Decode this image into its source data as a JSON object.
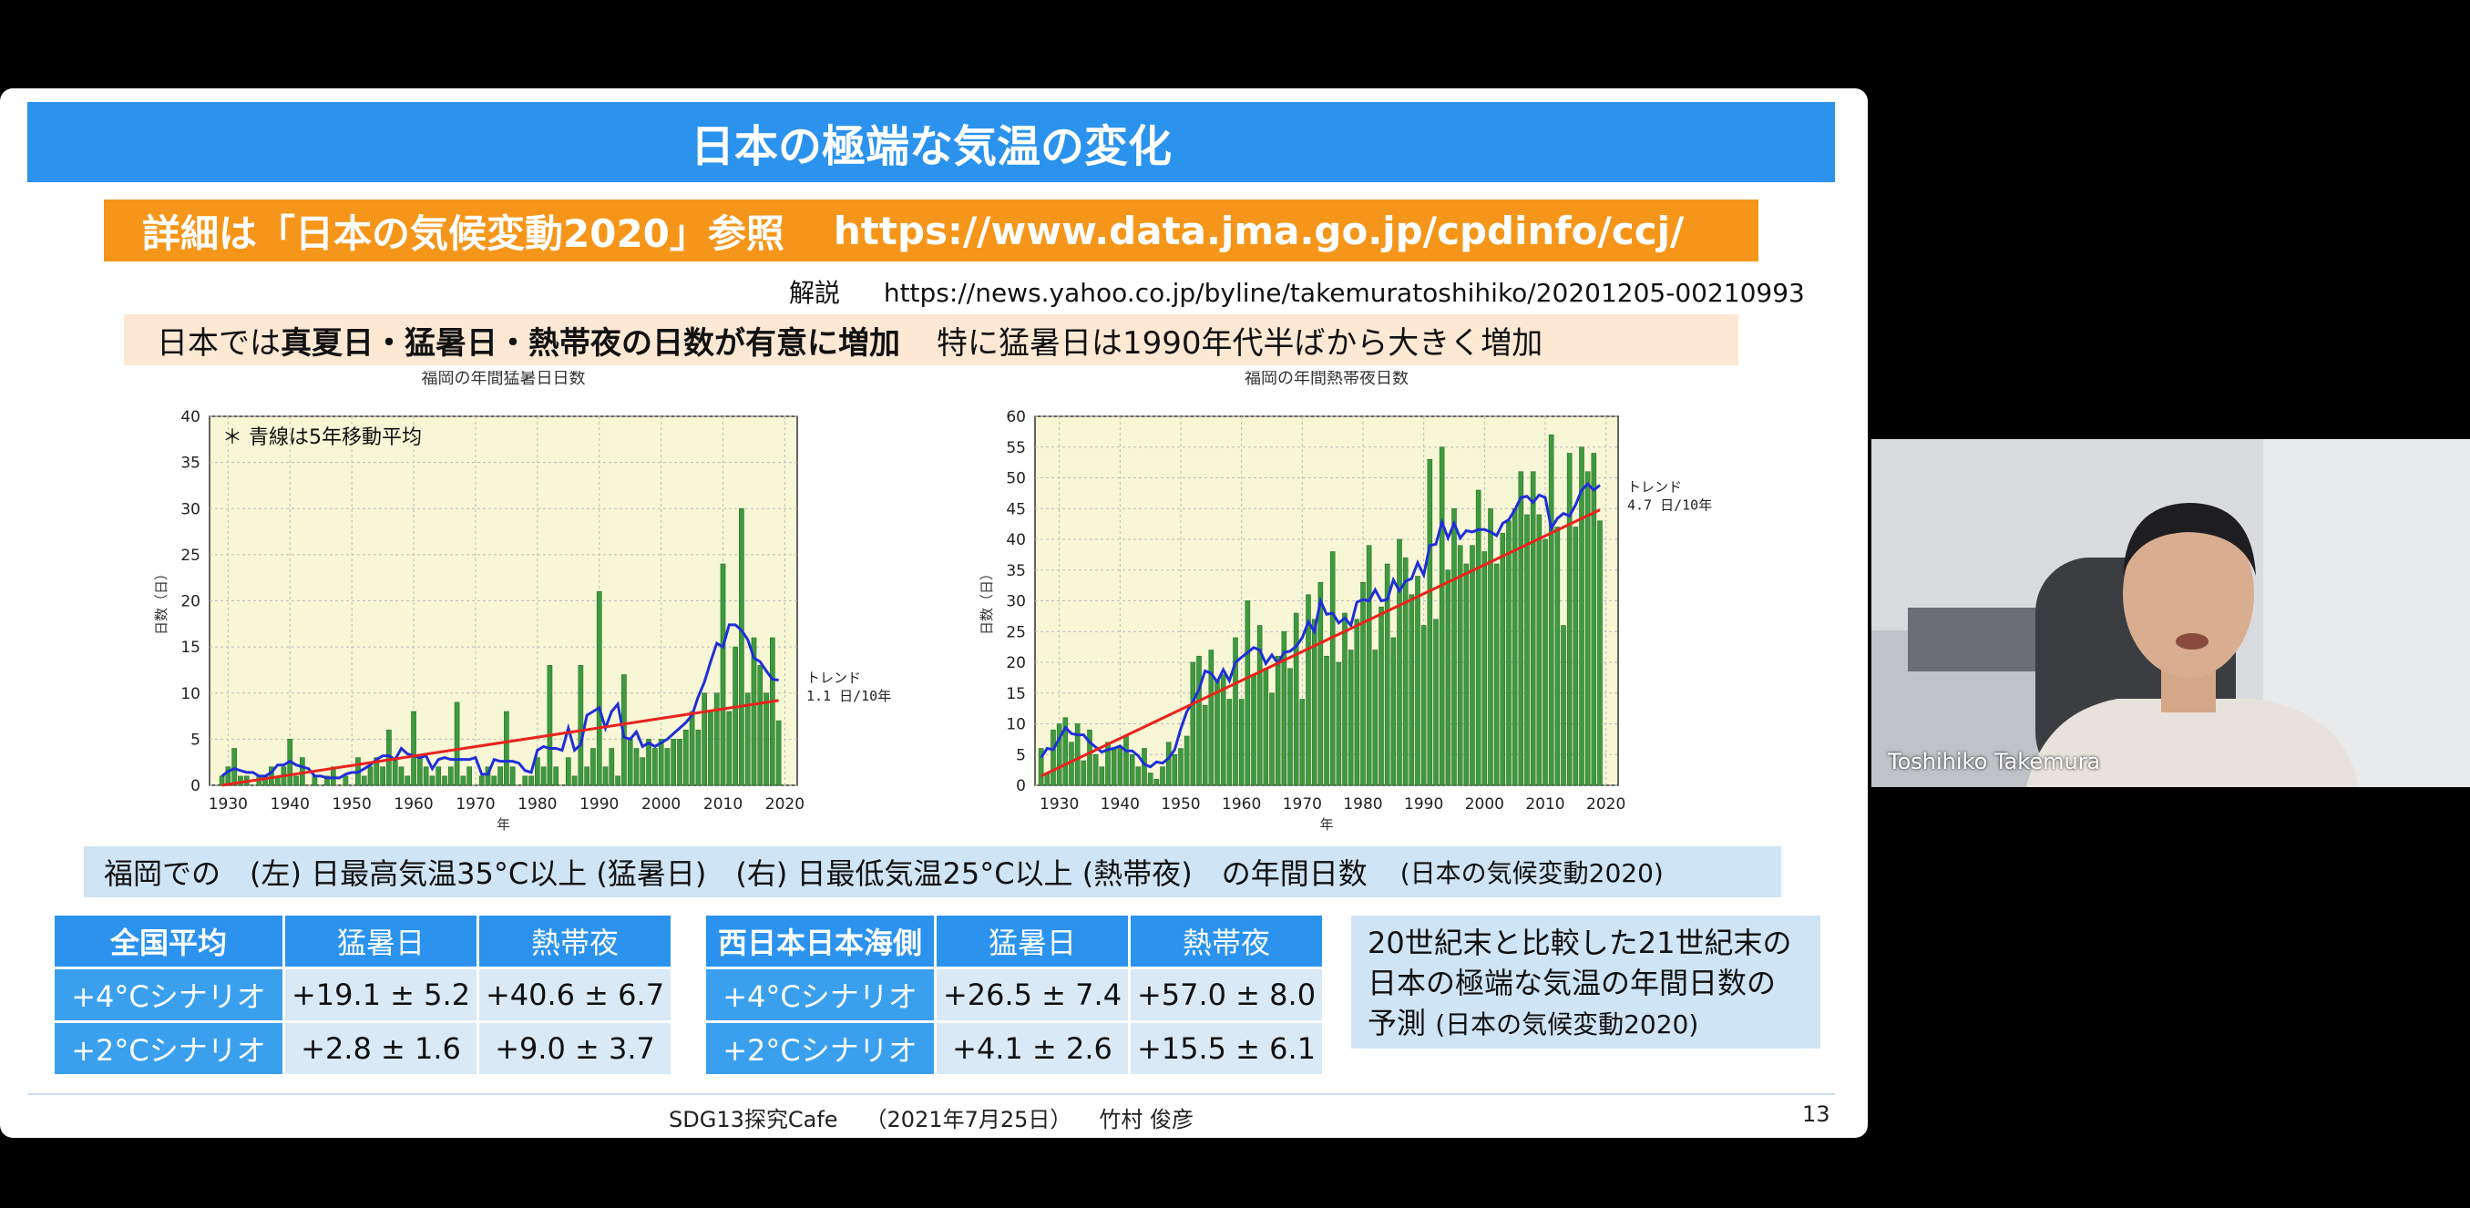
{
  "slide": {
    "title": "日本の極端な気温の変化",
    "reference": {
      "label": "詳細は「日本の気候変動2020」参照",
      "url": "https://www.data.jma.go.jp/cpdinfo/ccj/"
    },
    "commentary": {
      "label": "解説",
      "url": "https://news.yahoo.co.jp/byline/takemuratoshihiko/20201205-00210993"
    },
    "key_finding": {
      "prefix": "日本では",
      "bold": "真夏日・猛暑日・熱帯夜の日数が有意に増加",
      "suffix": "特に猛暑日は1990年代半ばから大きく増加"
    },
    "caption": {
      "text": "福岡での　(左) 日最高気温35°C以上 (猛暑日)　(右) 日最低気温25°C以上 (熱帯夜)　の年間日数",
      "source": "(日本の気候変動2020)"
    },
    "tables": [
      {
        "headers": [
          "全国平均",
          "猛暑日",
          "熱帯夜"
        ],
        "rows": [
          [
            "+4°Cシナリオ",
            "+19.1 ± 5.2",
            "+40.6 ± 6.7"
          ],
          [
            "+2°Cシナリオ",
            "+2.8 ± 1.6",
            "+9.0 ± 3.7"
          ]
        ]
      },
      {
        "headers": [
          "西日本日本海側",
          "猛暑日",
          "熱帯夜"
        ],
        "rows": [
          [
            "+4°Cシナリオ",
            "+26.5 ± 7.4",
            "+57.0 ± 8.0"
          ],
          [
            "+2°Cシナリオ",
            "+4.1 ± 2.6",
            "+15.5 ± 6.1"
          ]
        ]
      }
    ],
    "note": {
      "text": "20世紀末と比較した21世紀末の日本の極端な気温の年間日数の予測",
      "source": "(日本の気候変動2020)"
    },
    "footer": {
      "event": "SDG13探究Cafe",
      "date": "（2021年7月25日）",
      "author": "竹村 俊彦"
    },
    "page_number": "13"
  },
  "video": {
    "participant_name": "Toshihiko Takemura"
  },
  "colors": {
    "title_bar": "#2b93ee",
    "reference_bar": "#f5961a",
    "bar_green": "#3e9a3e",
    "moving_average_line": "#1f2fd6",
    "trend_line": "#e8231e",
    "plot_background": "#f7f7d6"
  },
  "chart_data": [
    {
      "type": "bar",
      "title": "福岡の年間猛暑日日数",
      "xlabel": "年",
      "ylabel": "日数（日）",
      "xlim": [
        1927,
        2022
      ],
      "ylim": [
        0,
        40
      ],
      "yticks": [
        0,
        5,
        10,
        15,
        20,
        25,
        30,
        35,
        40
      ],
      "xticks": [
        1930,
        1940,
        1950,
        1960,
        1970,
        1980,
        1990,
        2000,
        2010,
        2020
      ],
      "grid": true,
      "annotation": "＊ 青線は5年移動平均",
      "trend_label": "トレンド\n1.1 日/10年",
      "years": [
        1929,
        1930,
        1931,
        1932,
        1933,
        1934,
        1935,
        1936,
        1937,
        1938,
        1939,
        1940,
        1941,
        1942,
        1943,
        1944,
        1945,
        1946,
        1947,
        1948,
        1949,
        1950,
        1951,
        1952,
        1953,
        1954,
        1955,
        1956,
        1957,
        1958,
        1959,
        1960,
        1961,
        1962,
        1963,
        1964,
        1965,
        1966,
        1967,
        1968,
        1969,
        1970,
        1971,
        1972,
        1973,
        1974,
        1975,
        1976,
        1977,
        1978,
        1979,
        1980,
        1981,
        1982,
        1983,
        1984,
        1985,
        1986,
        1987,
        1988,
        1989,
        1990,
        1991,
        1992,
        1993,
        1994,
        1995,
        1996,
        1997,
        1998,
        1999,
        2000,
        2001,
        2002,
        2003,
        2004,
        2005,
        2006,
        2007,
        2008,
        2009,
        2010,
        2011,
        2012,
        2013,
        2014,
        2015,
        2016,
        2017,
        2018,
        2019
      ],
      "values": [
        1,
        2,
        4,
        1,
        1,
        0,
        1,
        1,
        2,
        1,
        2,
        5,
        1,
        3,
        0,
        1,
        0,
        1,
        2,
        0,
        1,
        0,
        3,
        1,
        2,
        3,
        2,
        6,
        3,
        2,
        1,
        8,
        3,
        2,
        1,
        2,
        1,
        2,
        9,
        1,
        2,
        0,
        1,
        2,
        1,
        2,
        8,
        2,
        0,
        1,
        1,
        3,
        2,
        13,
        2,
        0,
        3,
        1,
        13,
        2,
        4,
        21,
        2,
        4,
        1,
        12,
        5,
        4,
        3,
        5,
        4,
        5,
        4,
        5,
        5,
        6,
        8,
        6,
        10,
        8,
        10,
        24,
        8,
        15,
        30,
        10,
        16,
        13,
        10,
        16,
        7
      ],
      "moving_average": [
        1.0,
        1.5,
        1.8,
        1.6,
        1.4,
        1.4,
        1.0,
        1.0,
        1.4,
        2.2,
        2.2,
        2.6,
        2.2,
        2.0,
        1.8,
        1.0,
        1.0,
        0.8,
        0.8,
        0.8,
        1.2,
        1.4,
        1.4,
        1.8,
        2.2,
        2.8,
        3.2,
        3.2,
        2.8,
        4.0,
        3.4,
        3.2,
        3.0,
        3.2,
        1.8,
        2.8,
        3.0,
        2.8,
        2.8,
        2.8,
        2.8,
        3.0,
        1.2,
        1.2,
        2.8,
        2.6,
        2.6,
        2.6,
        2.4,
        1.6,
        1.4,
        3.8,
        4.2,
        4.0,
        4.0,
        3.8,
        6.2,
        3.8,
        4.4,
        7.6,
        8.0,
        8.4,
        6.2,
        8.0,
        8.8,
        5.2,
        5.0,
        5.8,
        4.2,
        4.6,
        4.2,
        4.6,
        5.0,
        5.6,
        6.2,
        6.8,
        7.6,
        9.6,
        11.2,
        13.4,
        15.4,
        15.0,
        17.4,
        17.4,
        16.8,
        15.8,
        13.8,
        13.4,
        12.4,
        11.5,
        11.4
      ],
      "trend": [
        [
          1929,
          0.0
        ],
        [
          2019,
          9.2
        ]
      ]
    },
    {
      "type": "bar",
      "title": "福岡の年間熱帯夜日数",
      "xlabel": "年",
      "ylabel": "日数（日）",
      "xlim": [
        1926,
        2022
      ],
      "ylim": [
        0,
        60
      ],
      "yticks": [
        0,
        5,
        10,
        15,
        20,
        25,
        30,
        35,
        40,
        45,
        50,
        55,
        60
      ],
      "xticks": [
        1930,
        1940,
        1950,
        1960,
        1970,
        1980,
        1990,
        2000,
        2010,
        2020
      ],
      "grid": true,
      "trend_label": "トレンド\n4.7 日/10年",
      "years": [
        1927,
        1928,
        1929,
        1930,
        1931,
        1932,
        1933,
        1934,
        1935,
        1936,
        1937,
        1938,
        1939,
        1940,
        1941,
        1942,
        1943,
        1944,
        1945,
        1946,
        1947,
        1948,
        1949,
        1950,
        1951,
        1952,
        1953,
        1954,
        1955,
        1956,
        1957,
        1958,
        1959,
        1960,
        1961,
        1962,
        1963,
        1964,
        1965,
        1966,
        1967,
        1968,
        1969,
        1970,
        1971,
        1972,
        1973,
        1974,
        1975,
        1976,
        1977,
        1978,
        1979,
        1980,
        1981,
        1982,
        1983,
        1984,
        1985,
        1986,
        1987,
        1988,
        1989,
        1990,
        1991,
        1992,
        1993,
        1994,
        1995,
        1996,
        1997,
        1998,
        1999,
        2000,
        2001,
        2002,
        2003,
        2004,
        2005,
        2006,
        2007,
        2008,
        2009,
        2010,
        2011,
        2012,
        2013,
        2014,
        2015,
        2016,
        2017,
        2018,
        2019
      ],
      "values": [
        6,
        2,
        9,
        10,
        11,
        7,
        10,
        4,
        9,
        5,
        3,
        7,
        6,
        6,
        8,
        5,
        3,
        6,
        2,
        1,
        3,
        7,
        5,
        6,
        8,
        20,
        21,
        13,
        22,
        17,
        18,
        14,
        24,
        14,
        30,
        18,
        26,
        19,
        15,
        21,
        25,
        19,
        28,
        14,
        31,
        27,
        33,
        21,
        38,
        20,
        28,
        22,
        27,
        33,
        39,
        22,
        29,
        36,
        24,
        40,
        37,
        31,
        34,
        26,
        53,
        27,
        55,
        35,
        45,
        39,
        36,
        39,
        48,
        38,
        45,
        36,
        41,
        43,
        45,
        51,
        44,
        51,
        44,
        40,
        57,
        42,
        26,
        54,
        42,
        55,
        51,
        54,
        43
      ],
      "moving_average": [
        4.5,
        6.0,
        5.8,
        7.6,
        9.4,
        8.4,
        8.2,
        8.2,
        7.0,
        6.2,
        5.4,
        5.8,
        6.0,
        6.4,
        5.6,
        5.6,
        4.8,
        3.4,
        3.0,
        3.8,
        3.6,
        4.4,
        5.8,
        9.2,
        12.0,
        13.6,
        15.6,
        18.6,
        18.2,
        16.8,
        18.8,
        17.0,
        20.0,
        20.8,
        21.6,
        22.4,
        22.0,
        19.8,
        21.2,
        19.8,
        21.6,
        21.8,
        22.6,
        24.0,
        26.6,
        25.0,
        30.0,
        27.8,
        28.0,
        26.4,
        27.2,
        26.0,
        29.8,
        30.2,
        30.0,
        31.8,
        30.0,
        30.2,
        33.4,
        31.6,
        33.2,
        33.6,
        36.2,
        34.2,
        39.0,
        39.2,
        42.8,
        40.2,
        42.6,
        40.2,
        41.4,
        41.2,
        41.6,
        41.6,
        41.2,
        40.6,
        42.6,
        43.2,
        44.8,
        46.8,
        47.0,
        46.0,
        47.2,
        46.8,
        41.8,
        43.4,
        44.2,
        43.8,
        45.6,
        48.0,
        49.0,
        48.0,
        48.8
      ],
      "trend": [
        [
          1927,
          1.5
        ],
        [
          2019,
          44.8
        ]
      ]
    }
  ]
}
